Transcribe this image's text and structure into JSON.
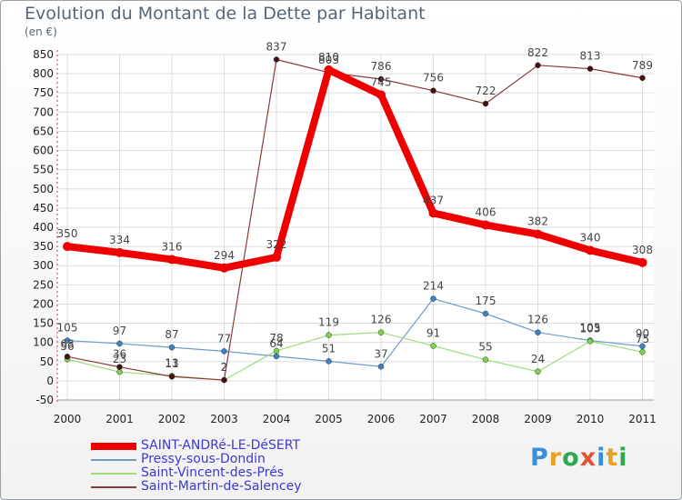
{
  "title": "Evolution du Montant de la Dette par Habitant",
  "subtitle": "(en €)",
  "logo": {
    "text": "Proxiti",
    "colors": [
      "#3a8fd8",
      "#e8a323",
      "#2fa84f",
      "#e25330",
      "#3a8fd8",
      "#e8a323",
      "#2fa84f"
    ]
  },
  "chart_data": {
    "type": "line",
    "x": [
      "2000",
      "2001",
      "2002",
      "2003",
      "2004",
      "2005",
      "2006",
      "2007",
      "2008",
      "2009",
      "2010",
      "2011"
    ],
    "ylim": [
      -50,
      850
    ],
    "yticks": [
      -50,
      0,
      50,
      100,
      150,
      200,
      250,
      300,
      350,
      400,
      450,
      500,
      550,
      600,
      650,
      700,
      750,
      800,
      850
    ],
    "grid": true,
    "legend_position": "bottom-left",
    "series": [
      {
        "name": "SAINT-ANDRé-LE-DéSERT",
        "color": "#ee0000",
        "values": [
          350,
          334,
          316,
          294,
          322,
          810,
          745,
          437,
          406,
          382,
          340,
          308
        ]
      },
      {
        "name": "Pressy-sous-Dondin",
        "color": "#6c9ccb",
        "values": [
          105,
          97,
          87,
          77,
          64,
          51,
          37,
          214,
          175,
          126,
          105,
          90
        ]
      },
      {
        "name": "Saint-Vincent-des-Prés",
        "color": "#9fdc7a",
        "values": [
          56,
          23,
          13,
          2,
          78,
          119,
          126,
          91,
          55,
          24,
          103,
          75
        ]
      },
      {
        "name": "Saint-Martin-de-Salencey",
        "color": "#8b3a3a",
        "values": [
          63,
          36,
          11,
          2,
          837,
          803,
          786,
          756,
          722,
          822,
          813,
          789
        ]
      }
    ]
  }
}
